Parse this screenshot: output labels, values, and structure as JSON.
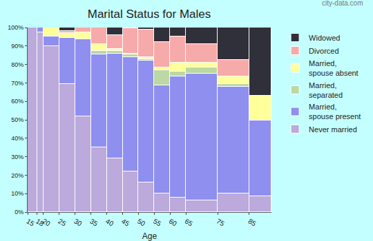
{
  "chart_data": {
    "type": "bar",
    "title": "Marital Status for Males",
    "x_label": "Age",
    "annotations": [
      "city-data.com"
    ],
    "stacked": true,
    "grid": false,
    "legend": "right",
    "bins": [
      15,
      18,
      20,
      25,
      30,
      35,
      40,
      45,
      50,
      55,
      60,
      65,
      75,
      85,
      92
    ],
    "xlim": [
      15,
      92
    ],
    "xticks": [
      15,
      18,
      20,
      25,
      30,
      35,
      40,
      45,
      50,
      55,
      60,
      65,
      75,
      85
    ],
    "ylim": [
      0,
      100
    ],
    "yticks": [
      {
        "value": 0,
        "label": "0%"
      },
      {
        "value": 10,
        "label": "10%"
      },
      {
        "value": 20,
        "label": "20%"
      },
      {
        "value": 30,
        "label": "30%"
      },
      {
        "value": 40,
        "label": "40%"
      },
      {
        "value": 50,
        "label": "50%"
      },
      {
        "value": 60,
        "label": "60%"
      },
      {
        "value": 70,
        "label": "70%"
      },
      {
        "value": 80,
        "label": "80%"
      },
      {
        "value": 90,
        "label": "90%"
      },
      {
        "value": 100,
        "label": "100%"
      }
    ],
    "series": [
      {
        "name": "Never married",
        "color": "#bbaadb",
        "values": [
          100,
          97.5,
          90,
          69.5,
          52,
          35,
          29,
          22,
          16,
          10,
          8,
          6.5,
          10,
          8.5
        ]
      },
      {
        "name": "Married, spouse present",
        "color": "#8f8ff0",
        "values": [
          0,
          2.5,
          5,
          25,
          41.5,
          50.5,
          57,
          62,
          66,
          58.5,
          65.5,
          68.5,
          58,
          41
        ]
      },
      {
        "name": "Married, separated",
        "color": "#bcd8a4",
        "values": [
          0,
          0,
          0,
          0,
          0,
          2,
          1.5,
          1.5,
          1,
          8.5,
          2.5,
          3.5,
          1.5,
          0
        ]
      },
      {
        "name": "Married, spouse absent",
        "color": "#ffff9c",
        "values": [
          0,
          0,
          5,
          2.5,
          4,
          3.5,
          1,
          0.5,
          1,
          1.5,
          5,
          2.5,
          4,
          13.5
        ]
      },
      {
        "name": "Divorced",
        "color": "#f7aaaa",
        "values": [
          0,
          0,
          0,
          1,
          2.5,
          9,
          7.5,
          13.5,
          15,
          13.5,
          14,
          10,
          9,
          0
        ]
      },
      {
        "name": "Widowed",
        "color": "#30303a",
        "values": [
          0,
          0,
          0,
          2,
          0,
          0,
          4,
          0.5,
          1,
          8,
          5,
          9,
          17.5,
          37
        ]
      }
    ]
  }
}
